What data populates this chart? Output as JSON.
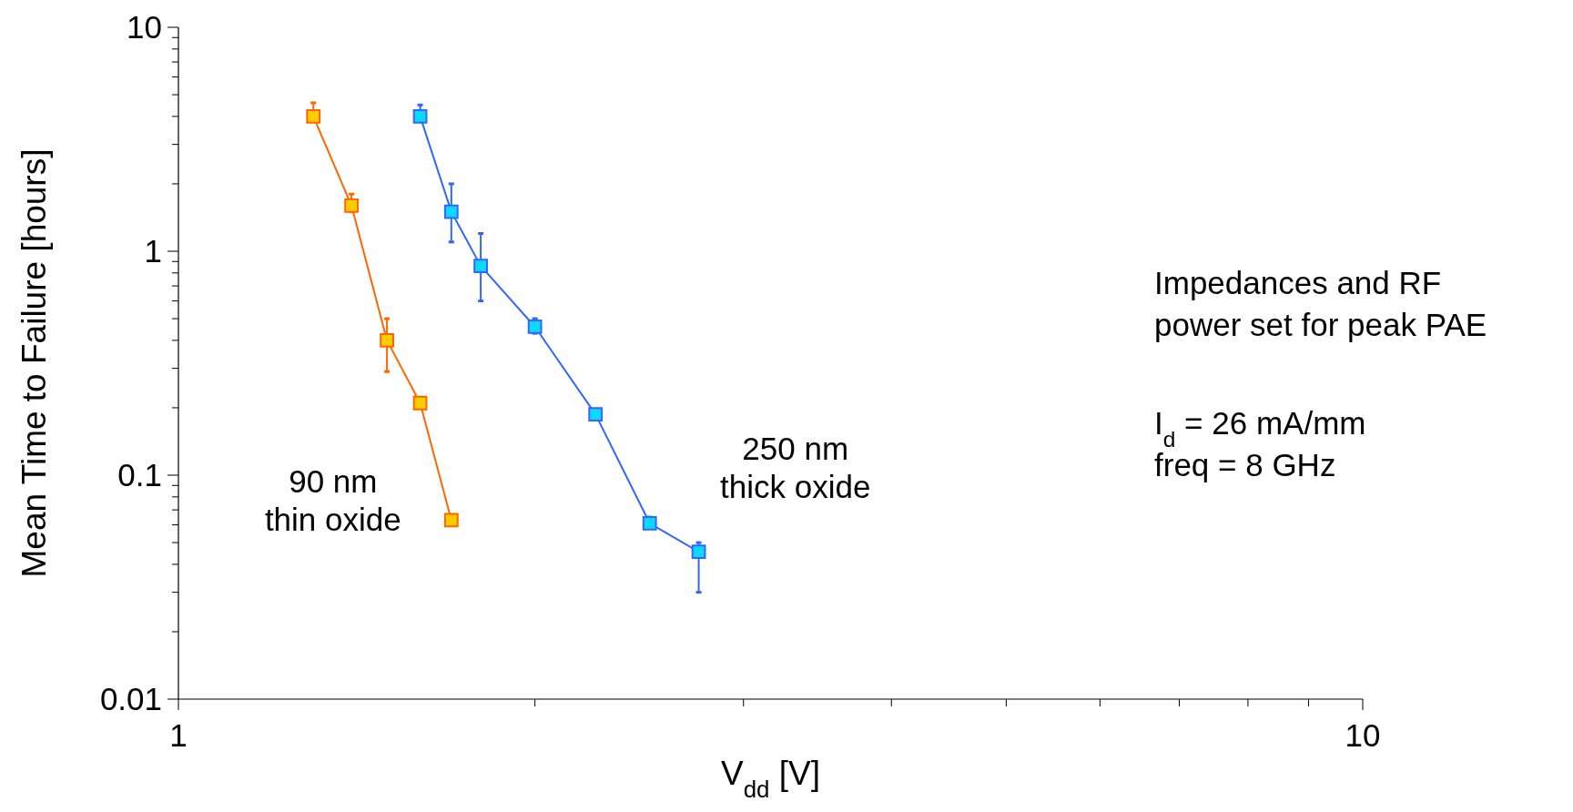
{
  "chart_data": {
    "type": "line",
    "xlabel": "V$_{dd}$ [V]",
    "ylabel": "Mean Time to Failure [hours]",
    "log": "xy",
    "marker": "square",
    "grid": false,
    "xlim": [
      1,
      10
    ],
    "ylim": [
      0.01,
      10
    ],
    "xticks": [
      1,
      {
        "value": 2,
        "label": null
      },
      {
        "value": 3,
        "label": null
      },
      {
        "value": 4,
        "label": null
      },
      {
        "value": 5,
        "label": null
      },
      {
        "value": 6,
        "label": null
      },
      {
        "value": 7,
        "label": null
      },
      {
        "value": 8,
        "label": null
      },
      {
        "value": 9,
        "label": null
      },
      10
    ],
    "yticks": [
      0.01,
      {
        "value": 0.02,
        "label": null
      },
      {
        "value": 0.03,
        "label": null
      },
      {
        "value": 0.04,
        "label": null
      },
      {
        "value": 0.05,
        "label": null
      },
      {
        "value": 0.06,
        "label": null
      },
      {
        "value": 0.07,
        "label": null
      },
      {
        "value": 0.08,
        "label": null
      },
      {
        "value": 0.09,
        "label": null
      },
      0.1,
      {
        "value": 0.2,
        "label": null
      },
      {
        "value": 0.3,
        "label": null
      },
      {
        "value": 0.4,
        "label": null
      },
      {
        "value": 0.5,
        "label": null
      },
      {
        "value": 0.6,
        "label": null
      },
      {
        "value": 0.7,
        "label": null
      },
      {
        "value": 0.8,
        "label": null
      },
      {
        "value": 0.9,
        "label": null
      },
      1,
      {
        "value": 2,
        "label": null
      },
      {
        "value": 3,
        "label": null
      },
      {
        "value": 4,
        "label": null
      },
      {
        "value": 5,
        "label": null
      },
      {
        "value": 6,
        "label": null
      },
      {
        "value": 7,
        "label": null
      },
      {
        "value": 8,
        "label": null
      },
      {
        "value": 9,
        "label": null
      },
      10
    ],
    "series": [
      {
        "name": "90 nm thin oxide",
        "color": "#ff6600",
        "x": [
          1.3,
          1.4,
          1.5,
          1.6,
          1.7
        ],
        "values": [
          4.0,
          1.6,
          0.4,
          0.21,
          0.063
        ],
        "errors": [
          [
            3.8,
            4.6
          ],
          [
            1.5,
            1.8
          ],
          [
            0.29,
            0.5
          ],
          [
            0.2,
            0.22
          ],
          null
        ]
      },
      {
        "name": "250 nm thick oxide",
        "color": "#3366ff",
        "x": [
          1.6,
          1.7,
          1.8,
          2.0,
          2.25,
          2.5,
          2.75
        ],
        "values": [
          4.0,
          1.5,
          0.86,
          0.46,
          0.187,
          0.061,
          0.0455
        ],
        "errors": [
          [
            3.8,
            4.5
          ],
          [
            1.1,
            2.0
          ],
          [
            0.6,
            1.2
          ],
          [
            0.43,
            0.5
          ],
          [
            0.18,
            0.195
          ],
          [
            0.058,
            0.065
          ],
          [
            0.03,
            0.05
          ]
        ]
      }
    ],
    "annotations": [
      "Impedances and RF",
      "power set for peak PAE",
      "I$_{d}$ = 26 mA/mm",
      "freq = 8 GHz"
    ]
  }
}
